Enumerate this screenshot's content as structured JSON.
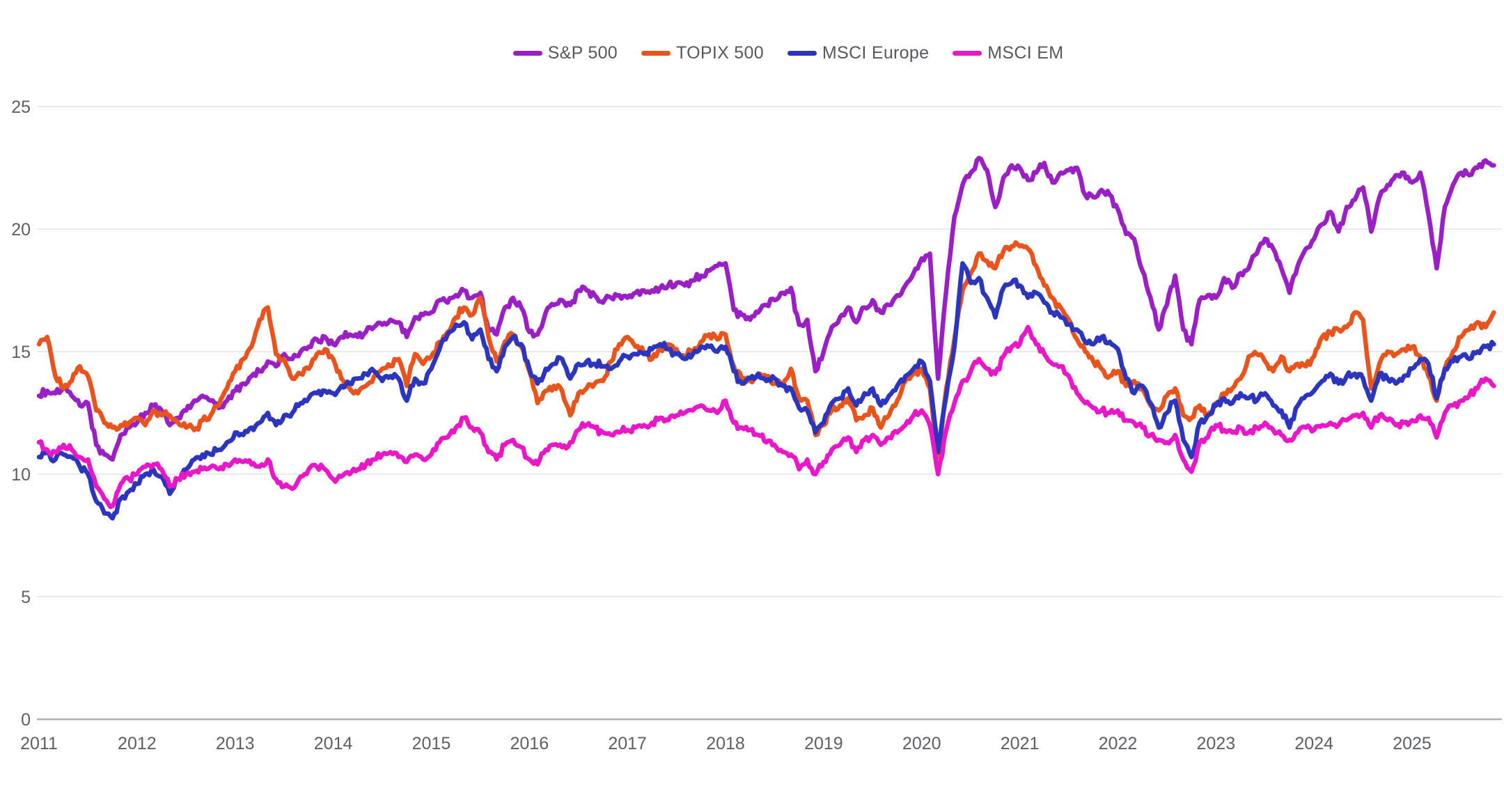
{
  "chart": {
    "title": "",
    "legend_items": [
      {
        "label": "S&P 500",
        "color": "#9a1fc4"
      },
      {
        "label": "TOPIX 500",
        "color": "#e8541c"
      },
      {
        "label": "MSCI Europe",
        "color": "#2b35be"
      },
      {
        "label": "MSCI EM",
        "color": "#e818c9"
      }
    ]
  },
  "styles": {
    "background": "#ffffff",
    "gridline_color": "#e4e4e6",
    "axis_line_color": "#aeaeb2",
    "tick_label_color": "#5c5f64",
    "legend_text_color": "#55585e",
    "line_width": 6.5
  },
  "chart_data": {
    "type": "line",
    "title": "",
    "xlabel": "",
    "ylabel": "",
    "x_unit": "monthly, Jan 2011 - Nov 2025 (values are forward P/E-style ratios read from chart)",
    "x_start_year": 2011,
    "x_months_per_point": 1,
    "x_tick_labels": [
      "2011",
      "2012",
      "2013",
      "2014",
      "2015",
      "2016",
      "2017",
      "2018",
      "2019",
      "2020",
      "2021",
      "2022",
      "2023",
      "2024",
      "2025"
    ],
    "y_ticks": [
      0,
      5,
      10,
      15,
      20,
      25
    ],
    "y_tick_labels": [
      "0",
      "5",
      "10",
      "15",
      "20",
      "25"
    ],
    "ylim": [
      0,
      25.8
    ],
    "grid": "horizontal",
    "legend_position": "top-center",
    "series": [
      {
        "name": "S&P 500",
        "color": "#9a1fc4",
        "values": [
          13.2,
          13.4,
          13.3,
          13.5,
          13.2,
          12.8,
          12.9,
          11.2,
          10.8,
          10.6,
          11.6,
          11.9,
          12.1,
          12.5,
          12.8,
          12.6,
          12.0,
          12.3,
          12.6,
          13.0,
          13.2,
          13.0,
          12.7,
          13.0,
          13.4,
          13.7,
          14.0,
          14.2,
          14.6,
          14.4,
          14.9,
          14.7,
          15.0,
          15.2,
          15.5,
          15.6,
          15.3,
          15.6,
          15.7,
          15.6,
          15.8,
          16.0,
          16.1,
          16.3,
          16.2,
          15.6,
          16.4,
          16.5,
          16.6,
          17.1,
          17.0,
          17.3,
          17.5,
          17.2,
          17.4,
          15.9,
          15.7,
          16.8,
          17.2,
          16.8,
          15.8,
          15.7,
          16.6,
          16.9,
          17.1,
          16.9,
          17.5,
          17.5,
          17.3,
          17.0,
          17.2,
          17.3,
          17.2,
          17.4,
          17.5,
          17.5,
          17.6,
          17.7,
          17.8,
          17.7,
          17.9,
          18.1,
          18.3,
          18.5,
          18.6,
          16.7,
          16.5,
          16.3,
          16.6,
          16.9,
          17.1,
          17.4,
          17.6,
          16.1,
          16.3,
          14.2,
          15.0,
          16.0,
          16.4,
          16.8,
          16.2,
          16.8,
          17.1,
          16.6,
          16.9,
          17.3,
          17.7,
          18.2,
          18.8,
          19.0,
          13.9,
          17.5,
          20.5,
          21.8,
          22.3,
          22.9,
          22.4,
          20.9,
          22.1,
          22.6,
          22.5,
          22.0,
          22.3,
          22.7,
          21.9,
          22.3,
          22.4,
          22.5,
          21.4,
          21.3,
          21.6,
          21.4,
          20.8,
          19.8,
          19.6,
          18.3,
          17.2,
          15.9,
          16.9,
          18.1,
          15.9,
          15.3,
          17.1,
          17.3,
          17.2,
          18.0,
          17.6,
          18.2,
          18.4,
          19.0,
          19.6,
          19.2,
          18.4,
          17.4,
          18.5,
          19.2,
          19.6,
          20.2,
          20.7,
          19.9,
          20.9,
          21.2,
          21.7,
          19.9,
          21.3,
          21.8,
          22.2,
          22.3,
          21.9,
          22.3,
          20.6,
          18.4,
          20.9,
          21.8,
          22.3,
          22.2,
          22.5,
          22.8,
          22.6
        ]
      },
      {
        "name": "TOPIX 500",
        "color": "#e8541c",
        "values": [
          15.3,
          15.6,
          14.0,
          13.5,
          13.8,
          14.4,
          14.0,
          12.6,
          12.1,
          11.9,
          12.0,
          12.1,
          12.3,
          12.0,
          12.6,
          12.4,
          12.4,
          12.1,
          11.9,
          11.8,
          12.2,
          12.4,
          12.8,
          13.5,
          14.2,
          14.7,
          15.2,
          16.3,
          16.8,
          14.9,
          14.7,
          13.9,
          14.1,
          14.3,
          14.9,
          15.1,
          14.7,
          13.9,
          13.5,
          13.3,
          13.6,
          14.0,
          14.3,
          14.4,
          14.7,
          13.6,
          14.9,
          14.5,
          14.8,
          15.4,
          15.8,
          16.4,
          16.8,
          16.5,
          17.2,
          15.6,
          14.6,
          15.4,
          15.7,
          15.2,
          14.2,
          12.9,
          13.4,
          13.6,
          13.4,
          12.4,
          13.3,
          13.5,
          13.7,
          13.8,
          14.6,
          15.3,
          15.6,
          15.2,
          15.0,
          14.7,
          15.1,
          15.3,
          15.1,
          14.8,
          15.0,
          15.4,
          15.7,
          15.5,
          15.7,
          14.4,
          13.9,
          13.8,
          14.1,
          14.0,
          13.7,
          13.6,
          14.3,
          13.1,
          13.0,
          11.6,
          12.0,
          12.6,
          12.8,
          13.1,
          12.2,
          12.4,
          12.7,
          11.9,
          12.4,
          13.0,
          13.8,
          14.1,
          14.3,
          13.5,
          10.7,
          13.5,
          15.5,
          17.5,
          18.2,
          19.0,
          18.7,
          18.4,
          19.1,
          19.3,
          19.3,
          19.2,
          18.5,
          17.7,
          17.2,
          16.8,
          16.3,
          15.5,
          15.0,
          14.6,
          14.3,
          14.0,
          14.2,
          13.6,
          13.8,
          13.5,
          12.8,
          12.6,
          13.2,
          13.5,
          12.4,
          12.3,
          12.8,
          12.4,
          12.9,
          13.3,
          13.5,
          13.9,
          14.8,
          14.9,
          14.6,
          14.2,
          14.8,
          14.2,
          14.5,
          14.4,
          14.8,
          15.6,
          15.8,
          15.9,
          16.0,
          16.6,
          16.3,
          13.5,
          14.5,
          15.0,
          14.9,
          15.1,
          15.2,
          14.8,
          14.0,
          13.0,
          14.3,
          15.0,
          15.6,
          15.9,
          16.2,
          16.0,
          16.6
        ]
      },
      {
        "name": "MSCI Europe",
        "color": "#2b35be",
        "values": [
          10.7,
          10.9,
          10.6,
          10.8,
          10.7,
          10.3,
          10.0,
          8.9,
          8.4,
          8.2,
          9.0,
          9.3,
          9.6,
          10.0,
          10.2,
          9.9,
          9.2,
          9.8,
          10.2,
          10.6,
          10.8,
          10.8,
          11.0,
          11.3,
          11.7,
          11.6,
          11.9,
          12.1,
          12.5,
          12.0,
          12.4,
          12.5,
          12.9,
          13.1,
          13.3,
          13.4,
          13.3,
          13.6,
          13.7,
          13.9,
          14.1,
          14.2,
          13.8,
          14.0,
          13.9,
          13.0,
          13.9,
          13.7,
          14.3,
          15.1,
          15.7,
          16.1,
          16.2,
          15.5,
          15.9,
          14.7,
          14.2,
          15.2,
          15.6,
          15.3,
          14.3,
          13.7,
          14.3,
          14.5,
          14.7,
          13.9,
          14.5,
          14.6,
          14.5,
          14.4,
          14.3,
          14.6,
          14.8,
          14.9,
          14.9,
          15.1,
          15.3,
          15.1,
          14.9,
          14.7,
          14.9,
          15.2,
          15.2,
          15.0,
          15.2,
          14.2,
          13.7,
          13.9,
          14.1,
          13.8,
          13.9,
          13.6,
          13.5,
          12.7,
          12.6,
          11.7,
          12.1,
          12.9,
          13.1,
          13.5,
          12.8,
          13.3,
          13.5,
          12.8,
          13.2,
          13.6,
          14.0,
          14.3,
          14.6,
          13.8,
          10.9,
          13.2,
          15.2,
          18.6,
          17.8,
          18.0,
          17.2,
          16.4,
          17.6,
          17.8,
          17.7,
          17.2,
          17.4,
          17.0,
          16.6,
          16.4,
          16.1,
          15.9,
          15.4,
          15.3,
          15.6,
          15.4,
          15.1,
          13.9,
          13.3,
          13.6,
          12.9,
          11.9,
          12.5,
          13.0,
          11.4,
          10.7,
          12.1,
          12.4,
          12.8,
          13.1,
          12.9,
          13.3,
          13.1,
          13.0,
          13.3,
          12.8,
          12.6,
          11.9,
          12.8,
          13.2,
          13.4,
          13.8,
          14.1,
          13.7,
          14.0,
          14.1,
          13.9,
          13.0,
          14.1,
          13.9,
          13.7,
          14.0,
          14.3,
          14.7,
          14.5,
          13.1,
          14.3,
          14.6,
          14.8,
          14.7,
          15.0,
          15.2,
          15.3
        ]
      },
      {
        "name": "MSCI EM",
        "color": "#e818c9",
        "values": [
          11.3,
          11.0,
          10.9,
          11.2,
          11.0,
          10.7,
          10.6,
          9.5,
          9.0,
          8.7,
          9.6,
          9.8,
          10.0,
          10.3,
          10.4,
          10.2,
          9.5,
          9.8,
          10.0,
          10.1,
          10.2,
          10.3,
          10.2,
          10.4,
          10.6,
          10.5,
          10.4,
          10.3,
          10.6,
          9.8,
          9.5,
          9.4,
          9.9,
          10.2,
          10.3,
          10.2,
          9.8,
          9.9,
          10.0,
          10.2,
          10.4,
          10.6,
          10.8,
          10.9,
          10.7,
          10.5,
          10.8,
          10.6,
          10.8,
          11.3,
          11.5,
          11.9,
          12.3,
          11.9,
          11.7,
          10.9,
          10.6,
          11.2,
          11.4,
          11.1,
          10.6,
          10.4,
          11.0,
          11.2,
          11.1,
          11.3,
          11.8,
          12.0,
          11.9,
          11.7,
          11.6,
          11.7,
          11.8,
          11.9,
          12.0,
          12.1,
          12.3,
          12.2,
          12.4,
          12.5,
          12.6,
          12.8,
          12.6,
          12.5,
          13.0,
          12.1,
          11.9,
          11.8,
          11.6,
          11.3,
          11.2,
          10.9,
          10.8,
          10.2,
          10.6,
          10.0,
          10.5,
          11.0,
          11.2,
          11.5,
          10.9,
          11.4,
          11.6,
          11.2,
          11.5,
          11.7,
          12.0,
          12.4,
          12.6,
          12.0,
          10.0,
          11.8,
          12.9,
          13.8,
          14.2,
          14.7,
          14.3,
          14.1,
          14.8,
          15.2,
          15.3,
          16.0,
          15.3,
          14.9,
          14.5,
          14.4,
          14.0,
          13.3,
          12.9,
          12.7,
          12.6,
          12.5,
          12.6,
          12.2,
          12.1,
          11.9,
          11.6,
          11.4,
          11.3,
          11.6,
          10.6,
          10.1,
          11.3,
          11.5,
          12.0,
          11.8,
          11.7,
          11.9,
          11.7,
          11.9,
          12.1,
          11.8,
          11.6,
          11.4,
          11.7,
          11.9,
          11.8,
          12.0,
          12.1,
          12.0,
          12.2,
          12.4,
          12.5,
          11.9,
          12.4,
          12.2,
          12.0,
          12.1,
          12.2,
          12.4,
          12.3,
          11.5,
          12.5,
          12.8,
          13.0,
          13.2,
          13.5,
          13.9,
          13.6
        ]
      }
    ]
  }
}
